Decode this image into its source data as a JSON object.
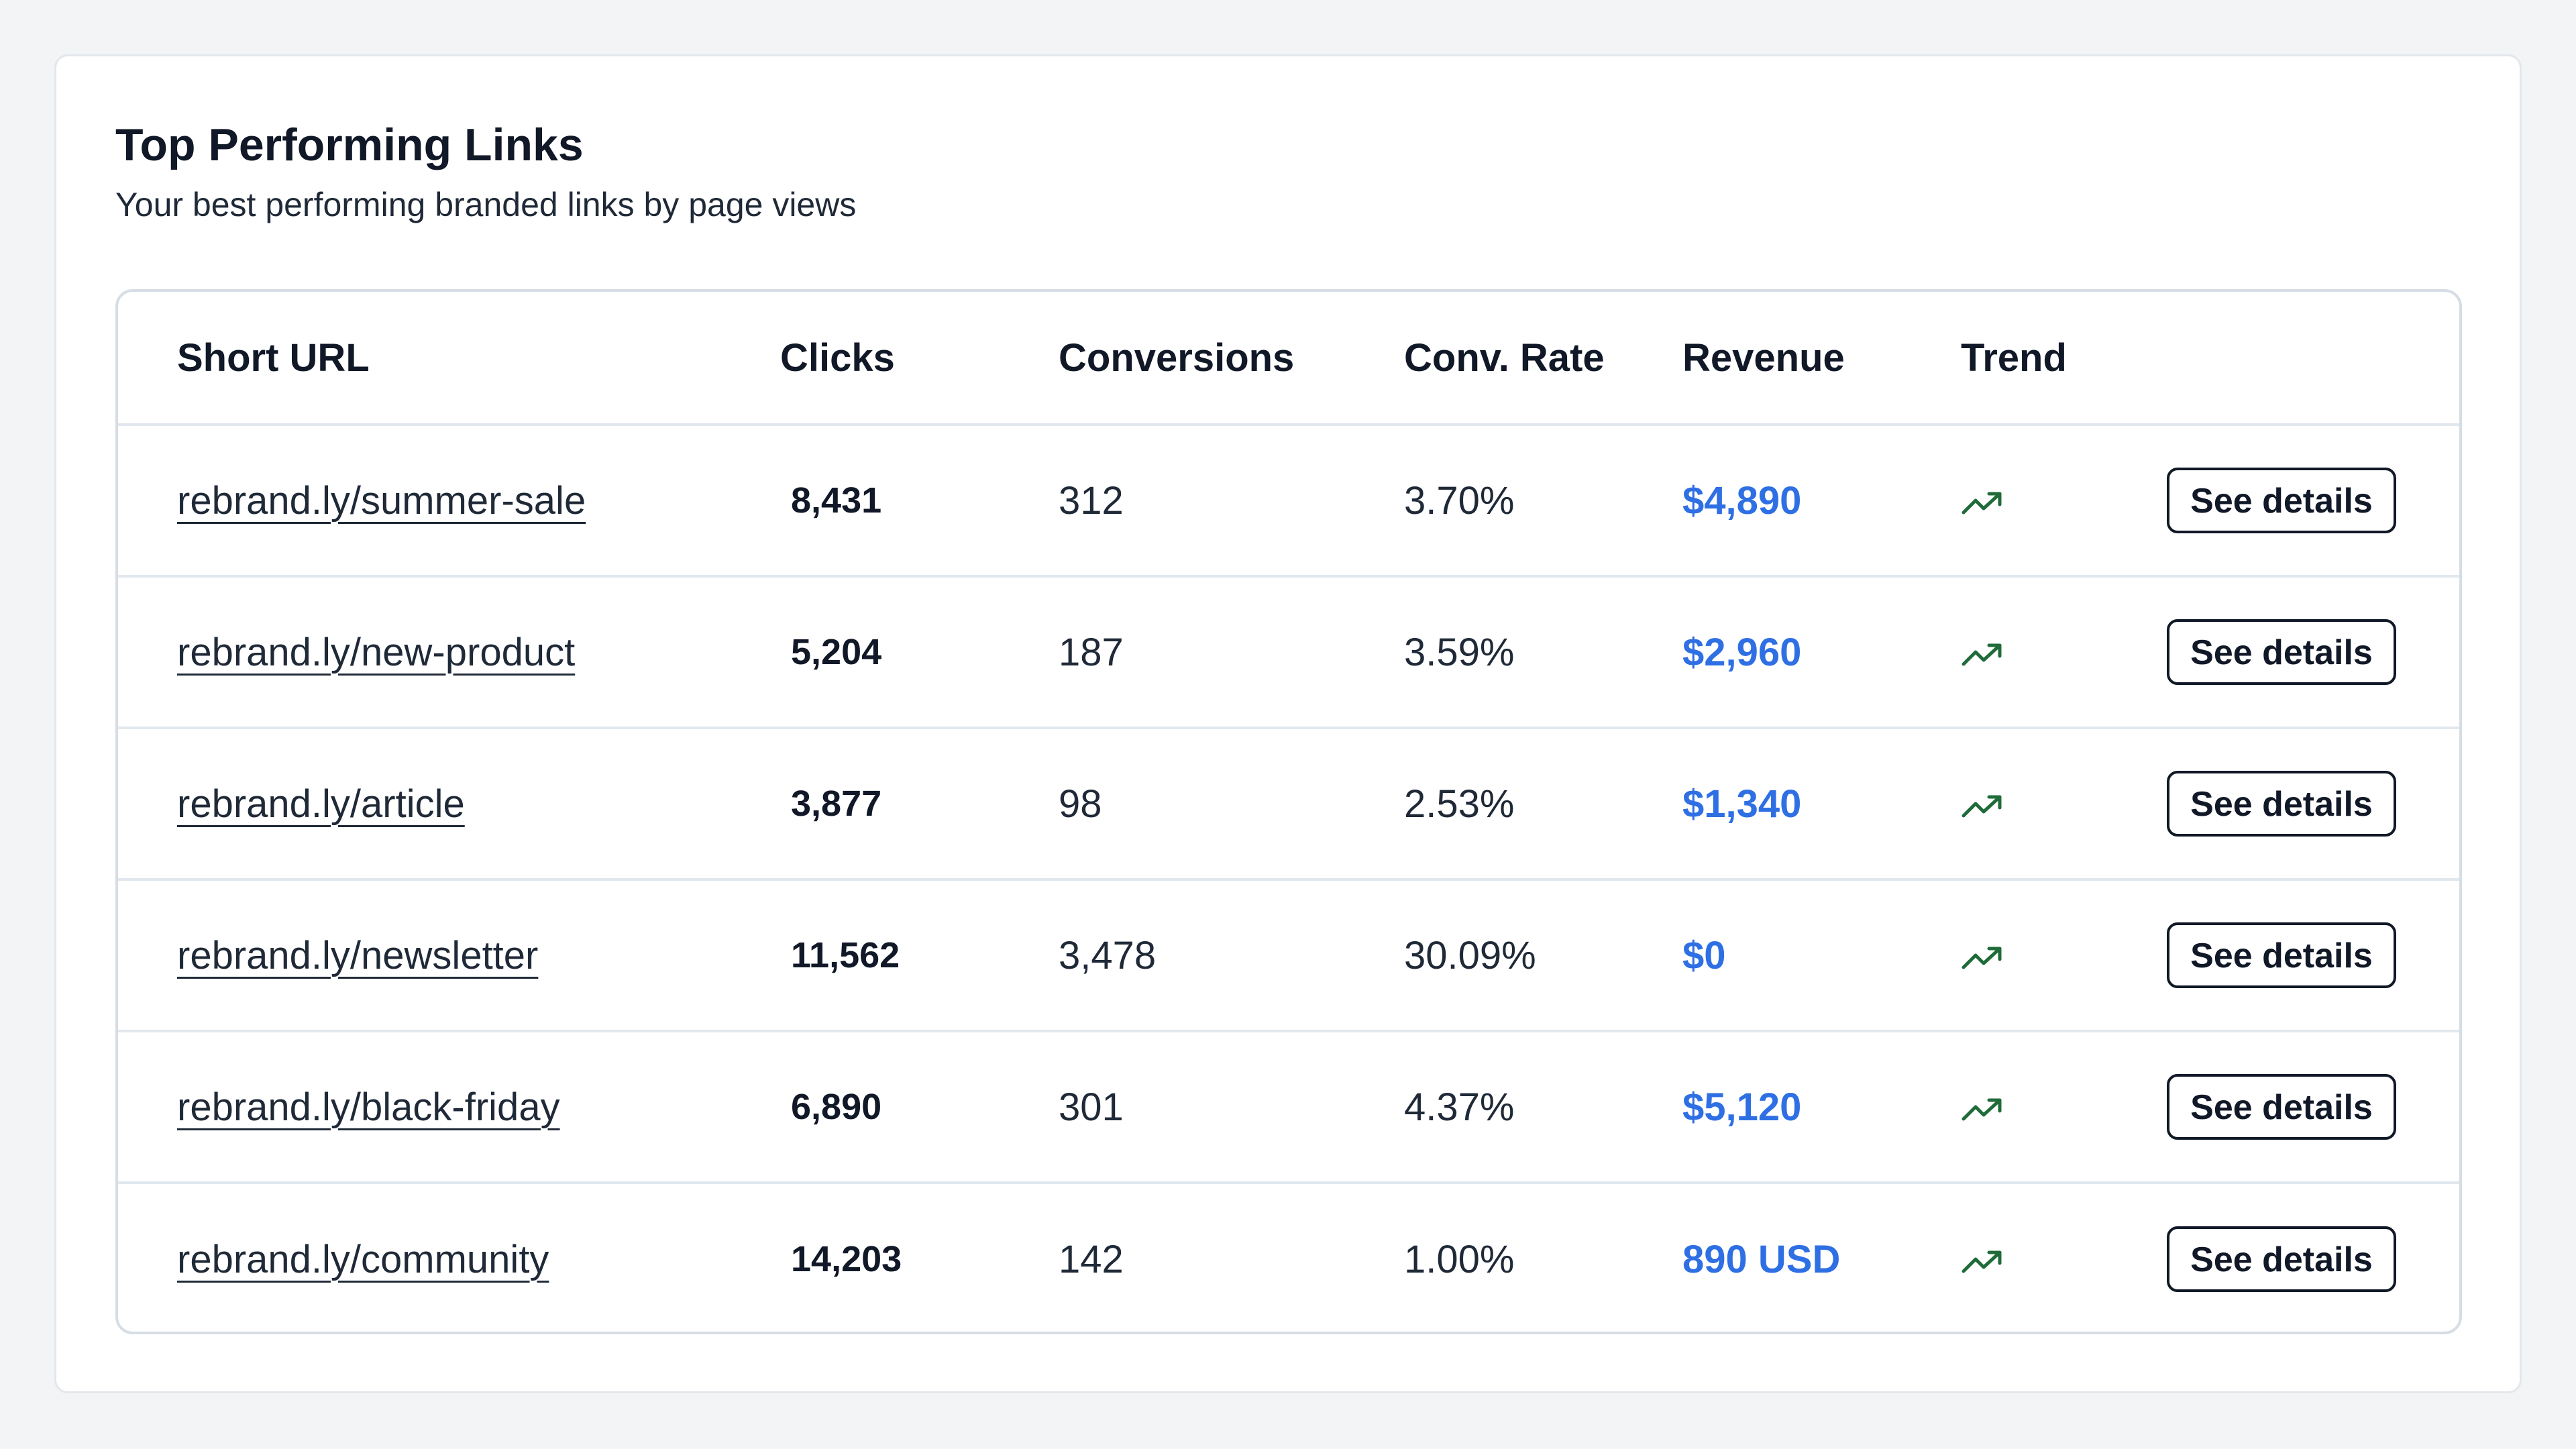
{
  "card": {
    "title": "Top Performing Links",
    "subtitle": "Your best performing branded links by page views"
  },
  "table": {
    "headers": {
      "short_url": "Short URL",
      "clicks": "Clicks",
      "conversions": "Conversions",
      "conv_rate": "Conv. Rate",
      "revenue": "Revenue",
      "trend": "Trend"
    },
    "rows": [
      {
        "url": "rebrand.ly/summer-sale",
        "clicks": "8,431",
        "conversions": "312",
        "conv_rate": "3.70%",
        "revenue": "$4,890",
        "trend_icon": "trending-up-icon",
        "action": "See details"
      },
      {
        "url": "rebrand.ly/new-product",
        "clicks": "5,204",
        "conversions": "187",
        "conv_rate": "3.59%",
        "revenue": "$2,960",
        "trend_icon": "trending-up-icon",
        "action": "See details"
      },
      {
        "url": "rebrand.ly/article",
        "clicks": "3,877",
        "conversions": "98",
        "conv_rate": "2.53%",
        "revenue": "$1,340",
        "trend_icon": "trending-up-icon",
        "action": "See details"
      },
      {
        "url": "rebrand.ly/newsletter",
        "clicks": "11,562",
        "conversions": "3,478",
        "conv_rate": "30.09%",
        "revenue": "$0",
        "trend_icon": "trending-up-icon",
        "action": "See details"
      },
      {
        "url": "rebrand.ly/black-friday",
        "clicks": "6,890",
        "conversions": "301",
        "conv_rate": "4.37%",
        "revenue": "$5,120",
        "trend_icon": "trending-up-icon",
        "action": "See details"
      },
      {
        "url": "rebrand.ly/community",
        "clicks": "14,203",
        "conversions": "142",
        "conv_rate": "1.00%",
        "revenue": "890 USD",
        "trend_icon": "trending-up-icon",
        "action": "See details"
      }
    ]
  },
  "colors": {
    "revenue": "#2f6fe4",
    "trend": "#1f6b3a",
    "background": "#f3f4f6"
  }
}
